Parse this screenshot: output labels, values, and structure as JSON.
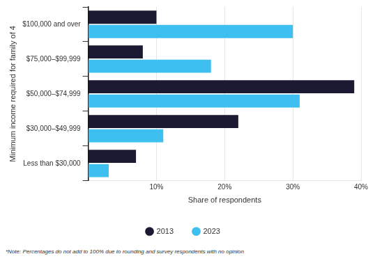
{
  "chart_data": {
    "type": "bar",
    "orientation": "horizontal",
    "categories": [
      "$100,000 and over",
      "$75,000–$99,999",
      "$50,000–$74,999",
      "$30,000–$49,999",
      "Less than $30,000"
    ],
    "series": [
      {
        "name": "2013",
        "color": "#1c1a33",
        "values": [
          10,
          8,
          39,
          22,
          7
        ]
      },
      {
        "name": "2023",
        "color": "#3dbff0",
        "values": [
          30,
          18,
          31,
          11,
          3
        ]
      }
    ],
    "x_label": "Share of respondents",
    "y_label": "Minimum income required for family of 4",
    "xlim": [
      0,
      40
    ],
    "xticks": [
      {
        "value": 10,
        "label": "10%"
      },
      {
        "value": 20,
        "label": "20%"
      },
      {
        "value": 30,
        "label": "30%"
      },
      {
        "value": 40,
        "label": "40%"
      }
    ],
    "grid": true,
    "legend": "bottom",
    "note": "*Note: Percentages do not add to 100% due to rounding and survey respondents with no opinion"
  }
}
